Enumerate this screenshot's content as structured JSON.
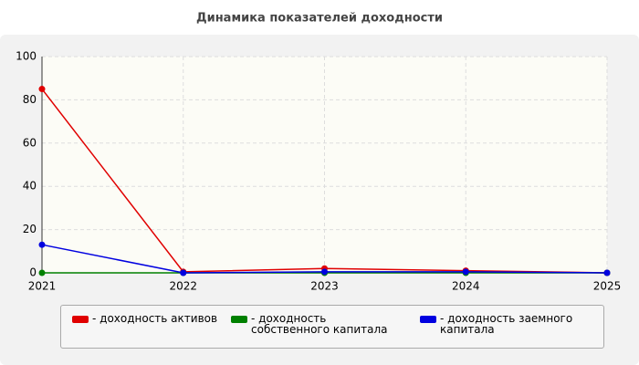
{
  "chart_data": {
    "type": "line",
    "title": "Динамика показателей доходности",
    "categories": [
      "2021",
      "2022",
      "2023",
      "2024",
      "2025"
    ],
    "series": [
      {
        "name": "- доходность активов",
        "color": "#e00000",
        "values": [
          85,
          0.5,
          2,
          1,
          0
        ]
      },
      {
        "name": "- доходность собственного капитала",
        "color": "#008000",
        "values": [
          0,
          0,
          0,
          0,
          0
        ]
      },
      {
        "name": "- доходность заемного капитала",
        "color": "#0000e0",
        "values": [
          13,
          0,
          0.5,
          0.5,
          0
        ]
      }
    ],
    "ylim": [
      0,
      100
    ],
    "yticks": [
      0,
      20,
      40,
      60,
      80,
      100
    ],
    "grid": true,
    "legend": "bottom"
  }
}
